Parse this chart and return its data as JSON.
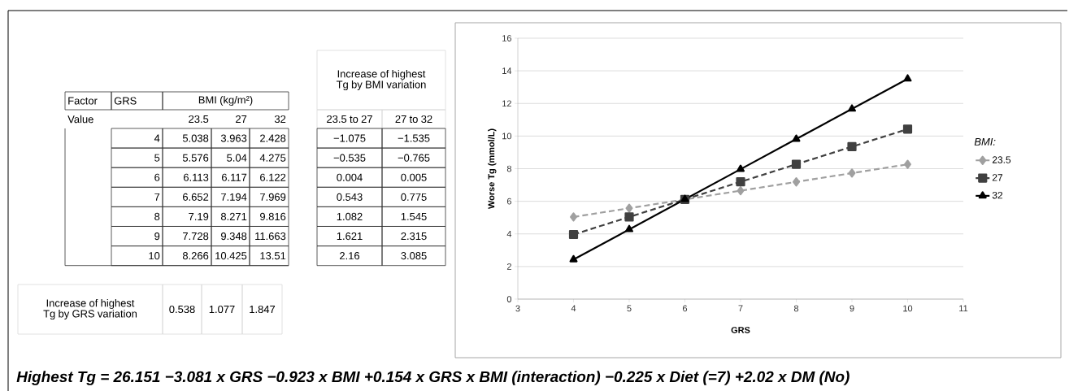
{
  "chart_data": {
    "type": "line",
    "xlabel": "GRS",
    "ylabel": "Worse Tg (mmol/L)",
    "legend_title": "BMI:",
    "x": [
      4,
      5,
      6,
      7,
      8,
      9,
      10
    ],
    "series": [
      {
        "name": "23.5",
        "color": "#a0a0a0",
        "marker": "diamond",
        "line_style": "dashed",
        "values": [
          5.038,
          5.576,
          6.113,
          6.652,
          7.19,
          7.728,
          8.266
        ]
      },
      {
        "name": "27",
        "color": "#404040",
        "marker": "square",
        "line_style": "dashed",
        "values": [
          3.963,
          5.04,
          6.117,
          7.194,
          8.271,
          9.348,
          10.425
        ]
      },
      {
        "name": "32",
        "color": "#000000",
        "marker": "triangle",
        "line_style": "solid",
        "values": [
          2.428,
          4.275,
          6.122,
          7.969,
          9.816,
          11.663,
          13.51
        ]
      }
    ],
    "xlim": [
      3,
      11
    ],
    "xticks": [
      3,
      4,
      5,
      6,
      7,
      8,
      9,
      10,
      11
    ],
    "ylim": [
      0,
      16
    ],
    "yticks": [
      0,
      2,
      4,
      6,
      8,
      10,
      12,
      14,
      16
    ],
    "grid": "y",
    "legend": "right",
    "annotations": [
      "Factor",
      "GRS",
      "BMI (kg/m²)",
      "Value",
      "23.5",
      "27",
      "32",
      "Increase of highest Tg by BMI variation",
      "23.5 to 27",
      "27 to 32",
      "4",
      "5.038",
      "3.963",
      "2.428",
      "−1.075",
      "−1.535",
      "5",
      "5.576",
      "5.04",
      "4.275",
      "−0.535",
      "−0.765",
      "6",
      "6.113",
      "6.117",
      "6.122",
      "0.004",
      "0.005",
      "7",
      "6.652",
      "7.194",
      "7.969",
      "0.543",
      "0.775",
      "8",
      "7.19",
      "8.271",
      "9.816",
      "1.082",
      "1.545",
      "9",
      "7.728",
      "9.348",
      "11.663",
      "1.621",
      "2.315",
      "10",
      "8.266",
      "10.425",
      "13.51",
      "2.16",
      "3.085",
      "Increase of highest Tg by GRS variation",
      "0.538",
      "1.077",
      "1.847",
      "Highest Tg = 26.151 −3.081 x GRS −0.923 x BMI +0.154 x GRS x BMI (interaction) −0.225 x Diet (=7) +2.02 x DM (No)"
    ]
  }
}
